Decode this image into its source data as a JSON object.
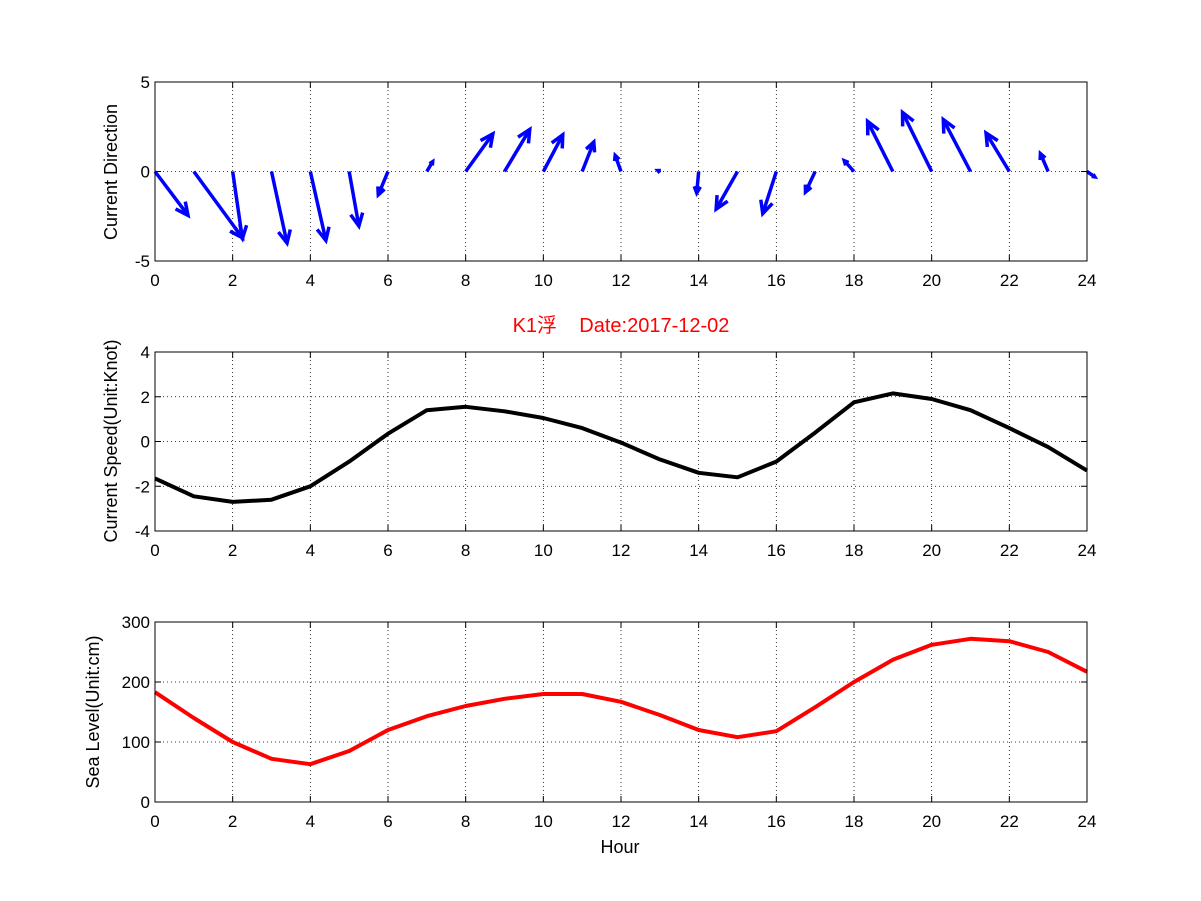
{
  "chart_data": [
    {
      "type": "quiver",
      "ylabel": "Current Direction",
      "xlim": [
        0,
        24
      ],
      "ylim": [
        -5,
        5
      ],
      "xticks": [
        0,
        2,
        4,
        6,
        8,
        10,
        12,
        14,
        16,
        18,
        20,
        22,
        24
      ],
      "yticks": [
        -5,
        0,
        5
      ],
      "grid": true,
      "color": "#0000ff",
      "vectors": [
        {
          "x": 0,
          "u": 0.85,
          "v": -2.45
        },
        {
          "x": 1,
          "u": 1.25,
          "v": -3.7
        },
        {
          "x": 2,
          "u": 0.25,
          "v": -3.75
        },
        {
          "x": 3,
          "u": 0.4,
          "v": -4.0
        },
        {
          "x": 4,
          "u": 0.4,
          "v": -3.85
        },
        {
          "x": 5,
          "u": 0.25,
          "v": -3.05
        },
        {
          "x": 6,
          "u": -0.25,
          "v": -1.3
        },
        {
          "x": 7,
          "u": 0.15,
          "v": 0.55
        },
        {
          "x": 8,
          "u": 0.7,
          "v": 2.1
        },
        {
          "x": 9,
          "u": 0.65,
          "v": 2.35
        },
        {
          "x": 10,
          "u": 0.5,
          "v": 2.05
        },
        {
          "x": 11,
          "u": 0.3,
          "v": 1.65
        },
        {
          "x": 12,
          "u": -0.15,
          "v": 0.9
        },
        {
          "x": 13,
          "u": -0.05,
          "v": 0.05
        },
        {
          "x": 14,
          "u": -0.05,
          "v": -1.2
        },
        {
          "x": 15,
          "u": -0.55,
          "v": -2.1
        },
        {
          "x": 16,
          "u": -0.35,
          "v": -2.35
        },
        {
          "x": 17,
          "u": -0.25,
          "v": -1.15
        },
        {
          "x": 18,
          "u": -0.25,
          "v": 0.6
        },
        {
          "x": 19,
          "u": -0.65,
          "v": 2.8
        },
        {
          "x": 20,
          "u": -0.75,
          "v": 3.3
        },
        {
          "x": 21,
          "u": -0.7,
          "v": 2.9
        },
        {
          "x": 22,
          "u": -0.6,
          "v": 2.15
        },
        {
          "x": 23,
          "u": -0.2,
          "v": 1.0
        },
        {
          "x": 24,
          "u": 0.2,
          "v": -0.3
        }
      ]
    },
    {
      "type": "line",
      "title": "K1浮    Date:2017-12-02",
      "ylabel": "Current Speed(Unit:Knot)",
      "xlim": [
        0,
        24
      ],
      "ylim": [
        -4,
        4
      ],
      "xticks": [
        0,
        2,
        4,
        6,
        8,
        10,
        12,
        14,
        16,
        18,
        20,
        22,
        24
      ],
      "yticks": [
        -4,
        -2,
        0,
        2,
        4
      ],
      "grid": true,
      "color": "#000000",
      "x": [
        0,
        1,
        2,
        3,
        4,
        5,
        6,
        7,
        8,
        9,
        10,
        11,
        12,
        13,
        14,
        15,
        16,
        17,
        18,
        19,
        20,
        21,
        22,
        23,
        24
      ],
      "y": [
        -1.65,
        -2.45,
        -2.7,
        -2.6,
        -2.0,
        -0.9,
        0.35,
        1.4,
        1.55,
        1.35,
        1.05,
        0.6,
        -0.05,
        -0.8,
        -1.4,
        -1.6,
        -0.9,
        0.4,
        1.75,
        2.15,
        1.9,
        1.4,
        0.6,
        -0.25,
        -1.3
      ]
    },
    {
      "type": "line",
      "xlabel": "Hour",
      "ylabel": "Sea Level(Unit:cm)",
      "xlim": [
        0,
        24
      ],
      "ylim": [
        0,
        300
      ],
      "xticks": [
        0,
        2,
        4,
        6,
        8,
        10,
        12,
        14,
        16,
        18,
        20,
        22,
        24
      ],
      "yticks": [
        0,
        100,
        200,
        300
      ],
      "grid": true,
      "color": "#ff0000",
      "x": [
        0,
        1,
        2,
        3,
        4,
        5,
        6,
        7,
        8,
        9,
        10,
        11,
        12,
        13,
        14,
        15,
        16,
        17,
        18,
        19,
        20,
        21,
        22,
        23,
        24
      ],
      "y": [
        183,
        140,
        100,
        72,
        63,
        85,
        120,
        143,
        160,
        172,
        180,
        180,
        167,
        145,
        120,
        108,
        118,
        158,
        200,
        237,
        262,
        272,
        268,
        250,
        217
      ]
    }
  ],
  "title_color": "#ff0000"
}
